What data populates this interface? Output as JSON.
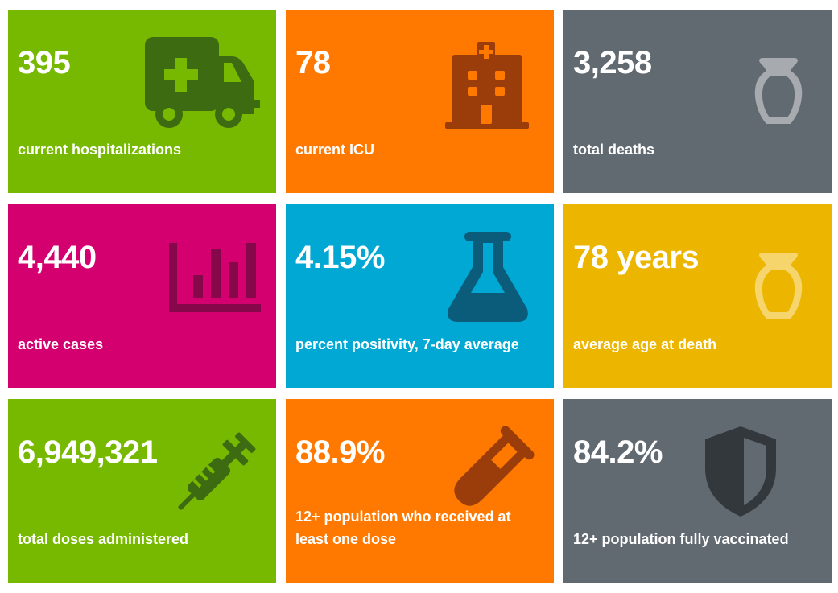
{
  "colors": {
    "green": "#76b900",
    "orange": "#ff7900",
    "gray": "#616971",
    "magenta": "#d4006f",
    "blue": "#02a8d4",
    "yellow": "#ebb500"
  },
  "tiles": [
    {
      "value": "395",
      "label": "current hospitalizations",
      "icon": "ambulance-icon",
      "color": "green"
    },
    {
      "value": "78",
      "label": "current ICU",
      "icon": "hospital-icon",
      "color": "orange"
    },
    {
      "value": "3,258",
      "label": "total deaths",
      "icon": "urn-icon",
      "color": "gray"
    },
    {
      "value": "4,440",
      "label": "active cases",
      "icon": "bar-chart-icon",
      "color": "magenta"
    },
    {
      "value": "4.15%",
      "label": "percent positivity, 7-day average",
      "icon": "flask-icon",
      "color": "blue"
    },
    {
      "value": "78 years",
      "label": "average age at death",
      "icon": "urn-icon",
      "color": "yellow"
    },
    {
      "value": "6,949,321",
      "label": "total doses administered",
      "icon": "syringe-icon",
      "color": "green"
    },
    {
      "value": "88.9%",
      "label": "12+ population who received at least one dose",
      "icon": "test-tube-icon",
      "color": "orange"
    },
    {
      "value": "84.2%",
      "label": "12+ population fully vaccinated",
      "icon": "shield-icon",
      "color": "gray"
    }
  ]
}
